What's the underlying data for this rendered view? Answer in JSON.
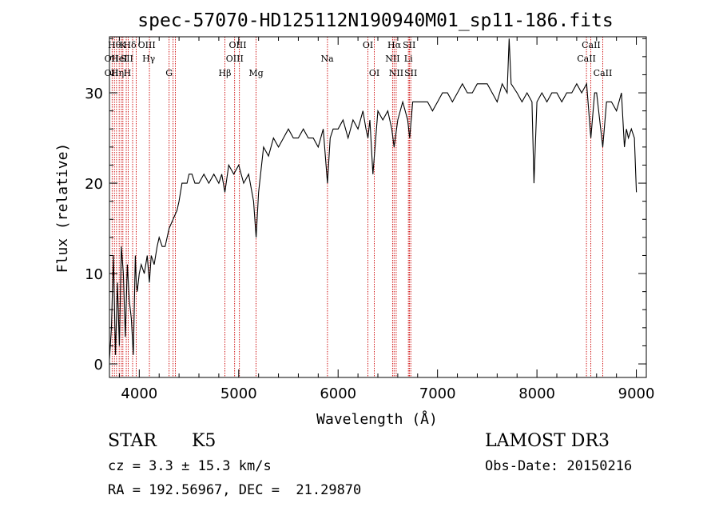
{
  "chart_data": {
    "type": "line",
    "title": "spec-57070-HD125112N190940M01_sp11-186.fits",
    "xlabel": "Wavelength (Å)",
    "ylabel": "Flux (relative)",
    "xlim": [
      3700,
      9100
    ],
    "ylim": [
      -1.5,
      36.2
    ],
    "x_ticks": [
      4000,
      5000,
      6000,
      7000,
      8000,
      9000
    ],
    "y_ticks": [
      0,
      10,
      20,
      30
    ],
    "grid": false,
    "series": [
      {
        "x": [
          3700,
          3720,
          3740,
          3760,
          3780,
          3800,
          3820,
          3840,
          3860,
          3880,
          3900,
          3920,
          3940,
          3960,
          3970,
          3980,
          4000,
          4020,
          4050,
          4080,
          4102,
          4120,
          4150,
          4180,
          4200,
          4230,
          4260,
          4300,
          4340,
          4380,
          4400,
          4430,
          4480,
          4500,
          4530,
          4560,
          4600,
          4650,
          4700,
          4750,
          4800,
          4830,
          4861,
          4900,
          4950,
          5000,
          5050,
          5100,
          5150,
          5175,
          5200,
          5250,
          5300,
          5350,
          5400,
          5450,
          5500,
          5550,
          5600,
          5650,
          5700,
          5750,
          5800,
          5850,
          5893,
          5920,
          5950,
          6000,
          6050,
          6100,
          6150,
          6200,
          6250,
          6280,
          6300,
          6320,
          6350,
          6400,
          6450,
          6500,
          6540,
          6563,
          6600,
          6650,
          6700,
          6720,
          6750,
          6800,
          6850,
          6900,
          6950,
          7000,
          7050,
          7100,
          7150,
          7200,
          7250,
          7300,
          7350,
          7400,
          7450,
          7500,
          7550,
          7600,
          7650,
          7700,
          7720,
          7740,
          7800,
          7850,
          7900,
          7950,
          7970,
          8000,
          8050,
          8100,
          8150,
          8200,
          8250,
          8300,
          8350,
          8400,
          8450,
          8500,
          8542,
          8580,
          8600,
          8662,
          8700,
          8750,
          8800,
          8850,
          8880,
          8900,
          8920,
          8950,
          8980,
          9000
        ],
        "values": [
          0.5,
          4,
          12,
          1,
          9,
          2,
          13,
          10,
          3,
          11,
          7,
          5,
          1,
          12,
          9,
          8,
          10,
          11,
          10,
          12,
          9,
          12,
          11,
          13,
          14,
          13,
          13,
          15,
          16,
          17,
          18,
          20,
          20,
          21,
          21,
          20,
          20,
          21,
          20,
          21,
          20,
          21,
          19,
          22,
          21,
          22,
          20,
          21,
          18,
          14,
          19,
          24,
          23,
          25,
          24,
          25,
          26,
          25,
          25,
          26,
          25,
          25,
          24,
          26,
          20,
          25,
          26,
          26,
          27,
          25,
          27,
          26,
          28,
          26,
          25,
          27,
          21,
          28,
          27,
          28,
          26,
          24,
          27,
          29,
          27,
          25,
          29,
          29,
          29,
          29,
          28,
          29,
          30,
          30,
          29,
          30,
          31,
          30,
          30,
          31,
          31,
          31,
          30,
          29,
          31,
          30,
          36,
          31,
          30,
          29,
          30,
          29,
          20,
          29,
          30,
          29,
          30,
          30,
          29,
          30,
          30,
          31,
          30,
          31,
          25,
          30,
          30,
          24,
          29,
          29,
          28,
          30,
          24,
          26,
          25,
          26,
          25,
          19
        ]
      }
    ],
    "line_labels": [
      {
        "wavelength": 3750,
        "row": 0,
        "text": "Hθ"
      },
      {
        "wavelength": 3835,
        "row": 0,
        "text": "K"
      },
      {
        "wavelength": 3905,
        "row": 0,
        "text": "Hδ"
      },
      {
        "wavelength": 4075,
        "row": 0,
        "text": "OIII"
      },
      {
        "wavelength": 4990,
        "row": 0,
        "text": "OIII"
      },
      {
        "wavelength": 6300,
        "row": 0,
        "text": "OI"
      },
      {
        "wavelength": 6565,
        "row": 0,
        "text": "Hα"
      },
      {
        "wavelength": 6715,
        "row": 0,
        "text": "SII"
      },
      {
        "wavelength": 8545,
        "row": 0,
        "text": "CaII"
      },
      {
        "wavelength": 3720,
        "row": 1,
        "text": "OII"
      },
      {
        "wavelength": 3800,
        "row": 1,
        "text": "HeI"
      },
      {
        "wavelength": 3875,
        "row": 1,
        "text": "SII"
      },
      {
        "wavelength": 4095,
        "row": 1,
        "text": "Hγ"
      },
      {
        "wavelength": 4960,
        "row": 1,
        "text": "OIII"
      },
      {
        "wavelength": 5890,
        "row": 1,
        "text": "Na"
      },
      {
        "wavelength": 6548,
        "row": 1,
        "text": "NII"
      },
      {
        "wavelength": 6707,
        "row": 1,
        "text": "Li"
      },
      {
        "wavelength": 8498,
        "row": 1,
        "text": "CaII"
      },
      {
        "wavelength": 3720,
        "row": 2,
        "text": "OII"
      },
      {
        "wavelength": 3780,
        "row": 2,
        "text": "Hη"
      },
      {
        "wavelength": 3880,
        "row": 2,
        "text": "H"
      },
      {
        "wavelength": 4300,
        "row": 2,
        "text": "G"
      },
      {
        "wavelength": 4861,
        "row": 2,
        "text": "Hβ"
      },
      {
        "wavelength": 5175,
        "row": 2,
        "text": "Mg"
      },
      {
        "wavelength": 6364,
        "row": 2,
        "text": "OI"
      },
      {
        "wavelength": 6584,
        "row": 2,
        "text": "NII"
      },
      {
        "wavelength": 6731,
        "row": 2,
        "text": "SII"
      },
      {
        "wavelength": 8662,
        "row": 2,
        "text": "CaII"
      }
    ],
    "line_markers": [
      3727,
      3750,
      3771,
      3798,
      3820,
      3835,
      3869,
      3889,
      3933,
      3969,
      4102,
      4300,
      4340,
      4363,
      4861,
      4959,
      5007,
      5175,
      5893,
      6300,
      6364,
      6548,
      6563,
      6584,
      6707,
      6717,
      6731,
      8498,
      8542,
      8662
    ]
  },
  "info": {
    "class_label": "STAR",
    "subclass": "K5",
    "survey": "LAMOST DR3",
    "redshift": "cz = 3.3 ± 15.3 km/s",
    "obs_date": "Obs-Date: 20150216",
    "coords": "RA = 192.56967, DEC =  21.29870"
  },
  "colors": {
    "line_marker": "#cc0000",
    "spectrum": "#000000"
  }
}
